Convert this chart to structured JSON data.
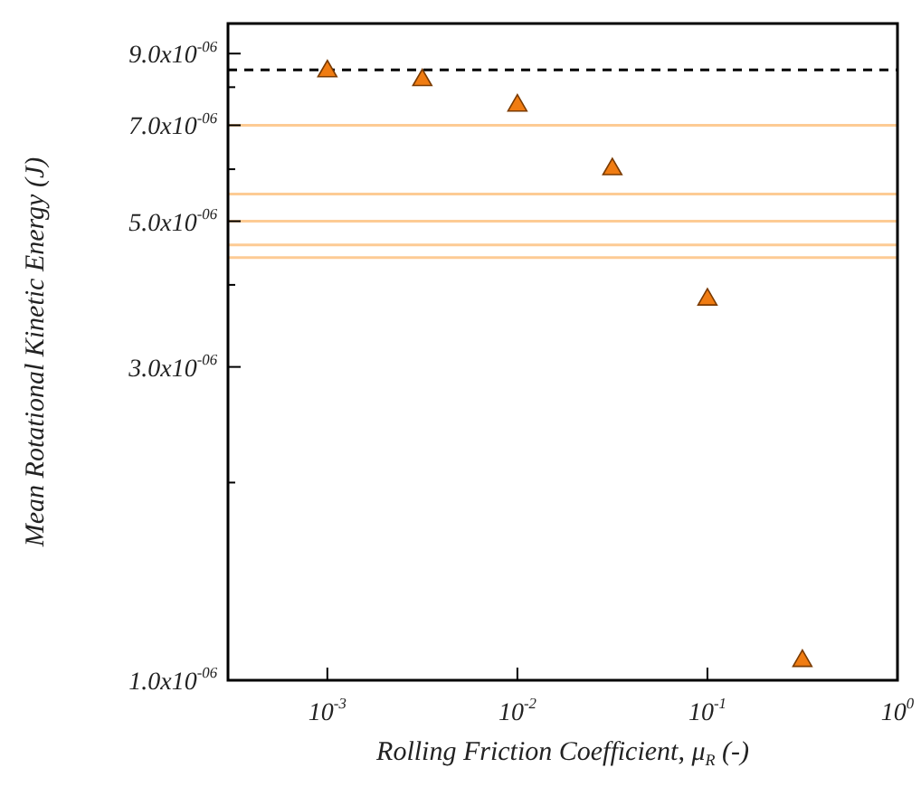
{
  "chart_data": {
    "type": "scatter",
    "xlabel": "Rolling Friction Coefficient, μ$_{R}$ (-)",
    "ylabel": "Mean Rotational Kinetic Energy (J)",
    "x": [
      0.001,
      0.00316,
      0.01,
      0.0316,
      0.1,
      0.316
    ],
    "series": [
      {
        "color": "#f07c12",
        "values": [
          8.46e-06,
          8.2e-06,
          7.5e-06,
          6e-06,
          3.8e-06,
          1.07e-06
        ]
      }
    ],
    "marker": "triangle",
    "log": "xy",
    "xlim": [
      0.000316,
      1
    ],
    "xticks": [
      {
        "value": 0.001,
        "label": "10$^{-3}$"
      },
      {
        "value": 0.01,
        "label": "10$^{-2}$"
      },
      {
        "value": 0.1,
        "label": "10$^{-1}$"
      },
      {
        "value": 1,
        "label": "10$^{0}$"
      }
    ],
    "ylim": [
      1e-06,
      1e-05
    ],
    "yticks": [
      {
        "value": 1e-06,
        "label": "1.0x10$^{-06}$"
      },
      {
        "value": 2e-06,
        "label": null
      },
      {
        "value": 3e-06,
        "label": "3.0x10$^{-06}$"
      },
      {
        "value": 4e-06,
        "label": null
      },
      {
        "value": 5e-06,
        "label": "5.0x10$^{-06}$"
      },
      {
        "value": 6e-06,
        "label": null
      },
      {
        "value": 7e-06,
        "label": "7.0x10$^{-06}$"
      },
      {
        "value": 8e-06,
        "label": null
      },
      {
        "value": 9e-06,
        "label": "9.0x10$^{-06}$"
      }
    ],
    "ref_lines": [
      {
        "axis": "y",
        "value": 8.5e-06,
        "color": "#000000",
        "line_style": "dashed"
      },
      {
        "axis": "y",
        "value": 7e-06,
        "color": "#fdcb94",
        "line_style": "solid"
      },
      {
        "axis": "y",
        "value": 5.5e-06,
        "color": "#fdcb94",
        "line_style": "solid"
      },
      {
        "axis": "y",
        "value": 5e-06,
        "color": "#fdcb94",
        "line_style": "solid"
      },
      {
        "axis": "y",
        "value": 4.6e-06,
        "color": "#fdcb94",
        "line_style": "solid"
      },
      {
        "axis": "y",
        "value": 4.4e-06,
        "color": "#fdcb94",
        "line_style": "solid"
      }
    ]
  }
}
